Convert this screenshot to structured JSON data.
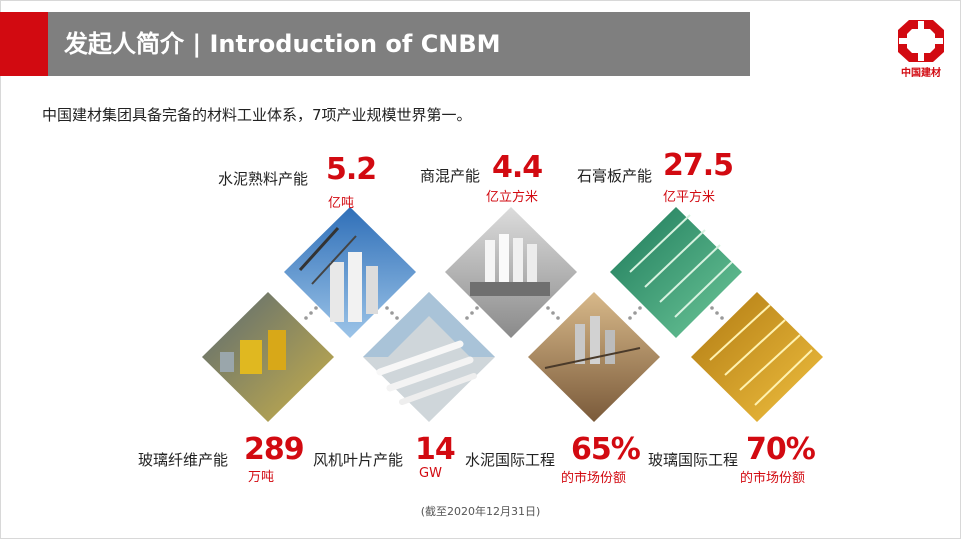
{
  "header": {
    "title": "发起人简介 | Introduction of CNBM"
  },
  "logo": {
    "text": "中国建材"
  },
  "intro": "中国建材集团具备完备的材料工业体系，7项产业规模世界第一。",
  "stats": [
    {
      "id": "cement-clinker",
      "label": "水泥熟料产能",
      "value": "5.2",
      "unit": "亿吨"
    },
    {
      "id": "ready-mix",
      "label": "商混产能",
      "value": "4.4",
      "unit": "亿立方米"
    },
    {
      "id": "gypsum-board",
      "label": "石膏板产能",
      "value": "27.5",
      "unit": "亿平方米"
    },
    {
      "id": "glass-fiber",
      "label": "玻璃纤维产能",
      "value": "289",
      "unit": "万吨"
    },
    {
      "id": "wind-blade",
      "label": "风机叶片产能",
      "value": "14",
      "unit": "GW"
    },
    {
      "id": "cement-engineering",
      "label": "水泥国际工程",
      "value": "65%",
      "unit": "的市场份额"
    },
    {
      "id": "glass-engineering",
      "label": "玻璃国际工程",
      "value": "70%",
      "unit": "的市场份额"
    }
  ],
  "footnote": "(截至2020年12月31日)",
  "colors": {
    "brand_red": "#d20a11",
    "header_gray": "#7f7f7f"
  }
}
